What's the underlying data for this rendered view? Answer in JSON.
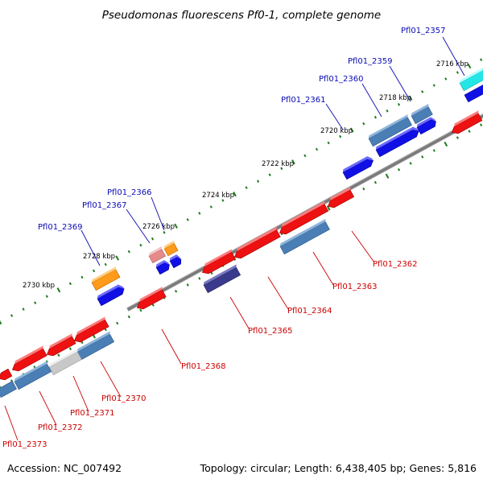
{
  "title": "Pseudomonas fluorescens Pf0-1, complete genome",
  "footer": {
    "accession": "Accession: NC_007492",
    "summary": "Topology: circular; Length: 6,438,405 bp; Genes: 5,816"
  },
  "colors": {
    "backbone": "#8a8a8a",
    "dots": "#1f7a1f",
    "label_top": "#0a0ab4",
    "label_bottom": "#cc0000",
    "gene_red": "#ee1111",
    "gene_blue": "#1010e6",
    "gene_steel": "#4a7fb5",
    "gene_orange": "#ff9a1a",
    "gene_pink": "#e48a8a",
    "gene_navy": "#3a3a8c",
    "gene_grey": "#c8c8c8",
    "gene_cyan": "#22e6e6"
  },
  "kbp_labels": [
    "2716 kbp",
    "2718 kbp",
    "2720 kbp",
    "2722 kbp",
    "2724 kbp",
    "2726 kbp",
    "2728 kbp",
    "2730 kbp"
  ],
  "top_gene_labels": [
    "Pfl01_2357",
    "Pfl01_2359",
    "Pfl01_2360",
    "Pfl01_2361",
    "Pfl01_2366",
    "Pfl01_2367",
    "Pfl01_2369"
  ],
  "bottom_gene_labels": [
    "Pfl01_2362",
    "Pfl01_2363",
    "Pfl01_2364",
    "Pfl01_2365",
    "Pfl01_2368",
    "Pfl01_2370",
    "Pfl01_2371",
    "Pfl01_2372",
    "Pfl01_2373"
  ]
}
